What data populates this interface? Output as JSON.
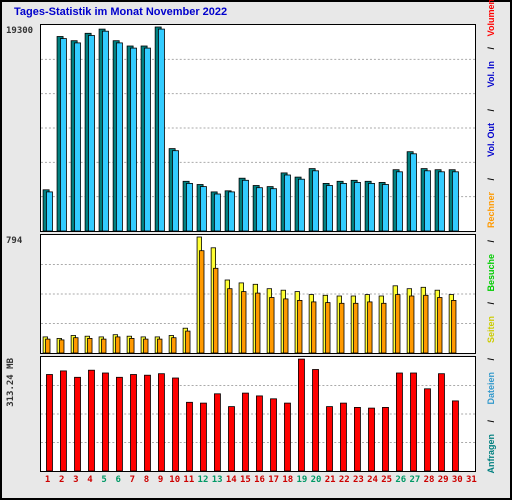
{
  "title": "Tages-Statistik im Monat November 2022",
  "title_color": "#0000cc",
  "background_color": "#e8e8e8",
  "panel_bg": "#ffffff",
  "grid_color": "#aaaaaa",
  "days": [
    1,
    2,
    3,
    4,
    5,
    6,
    7,
    8,
    9,
    10,
    11,
    12,
    13,
    14,
    15,
    16,
    17,
    18,
    19,
    20,
    21,
    22,
    23,
    24,
    25,
    26,
    27,
    28,
    29,
    30,
    31
  ],
  "panel1": {
    "ymax": 19300,
    "ylabel": "19300",
    "grid_steps": 6,
    "series": [
      {
        "color": "#008080",
        "values": [
          3900,
          18400,
          18000,
          18700,
          19100,
          18000,
          17500,
          17500,
          19300,
          7800,
          4700,
          4400,
          3700,
          3800,
          5000,
          4300,
          4200,
          5500,
          5100,
          5900,
          4500,
          4700,
          4800,
          4700,
          4600,
          5800,
          7500,
          5900,
          5800,
          5800,
          0
        ]
      },
      {
        "color": "#33ccff",
        "values": [
          3700,
          18200,
          17800,
          18500,
          18900,
          17800,
          17300,
          17300,
          19100,
          7600,
          4500,
          4200,
          3500,
          3700,
          4800,
          4100,
          4000,
          5300,
          4900,
          5700,
          4300,
          4500,
          4600,
          4500,
          4400,
          5600,
          7300,
          5700,
          5600,
          5600,
          0
        ]
      }
    ]
  },
  "panel2": {
    "ymax": 794,
    "ylabel": "794",
    "grid_steps": 4,
    "series": [
      {
        "color": "#ffff33",
        "values": [
          110,
          100,
          120,
          115,
          110,
          125,
          115,
          110,
          110,
          120,
          170,
          794,
          720,
          500,
          480,
          470,
          440,
          430,
          420,
          400,
          395,
          390,
          390,
          400,
          390,
          460,
          440,
          450,
          430,
          400,
          0
        ]
      },
      {
        "color": "#ff9900",
        "values": [
          95,
          90,
          105,
          100,
          95,
          110,
          100,
          95,
          95,
          105,
          150,
          700,
          580,
          440,
          420,
          410,
          380,
          370,
          360,
          350,
          345,
          340,
          340,
          350,
          340,
          400,
          390,
          395,
          380,
          360,
          0
        ]
      },
      {
        "color": "#00cc00",
        "values": [
          0,
          0,
          0,
          0,
          0,
          0,
          0,
          0,
          0,
          0,
          0,
          0,
          0,
          0,
          0,
          0,
          0,
          0,
          0,
          0,
          0,
          0,
          0,
          0,
          0,
          0,
          0,
          0,
          0,
          0,
          0
        ]
      }
    ]
  },
  "panel3": {
    "ymax": 313.24,
    "ylabel": "313.24 MB",
    "grid_steps": 4,
    "series": [
      {
        "color": "#0000cc",
        "values": [
          0,
          0,
          0,
          0,
          0,
          0,
          0,
          0,
          0,
          0,
          0,
          0,
          0,
          0,
          0,
          0,
          0,
          0,
          0,
          0,
          0,
          0,
          0,
          0,
          0,
          0,
          0,
          0,
          0,
          0,
          0
        ]
      },
      {
        "color": "#ff0000",
        "values": [
          270,
          280,
          262,
          282,
          274,
          262,
          270,
          268,
          272,
          260,
          192,
          190,
          216,
          180,
          218,
          210,
          202,
          190,
          313,
          284,
          180,
          190,
          178,
          176,
          178,
          274,
          274,
          230,
          272,
          196,
          0
        ]
      }
    ]
  },
  "xaxis": {
    "weekend_days": [
      5,
      6,
      12,
      13,
      19,
      20,
      26,
      27
    ],
    "weekend_color": "#009966",
    "normal_color": "#cc0000"
  },
  "legend": [
    {
      "text": "Anfragen",
      "color": "#008080"
    },
    {
      "text": "Dateien",
      "color": "#3399cc"
    },
    {
      "text": "Seiten",
      "color": "#cccc00"
    },
    {
      "text": "Besuche",
      "color": "#00cc00"
    },
    {
      "text": "Rechner",
      "color": "#ff9900"
    },
    {
      "text": "Vol. Out",
      "color": "#0000cc"
    },
    {
      "text": "Vol. In",
      "color": "#0000cc"
    },
    {
      "text": "Volumen",
      "color": "#ff0000"
    }
  ],
  "legend_sep": " / ",
  "legend_sep_color": "#000000"
}
